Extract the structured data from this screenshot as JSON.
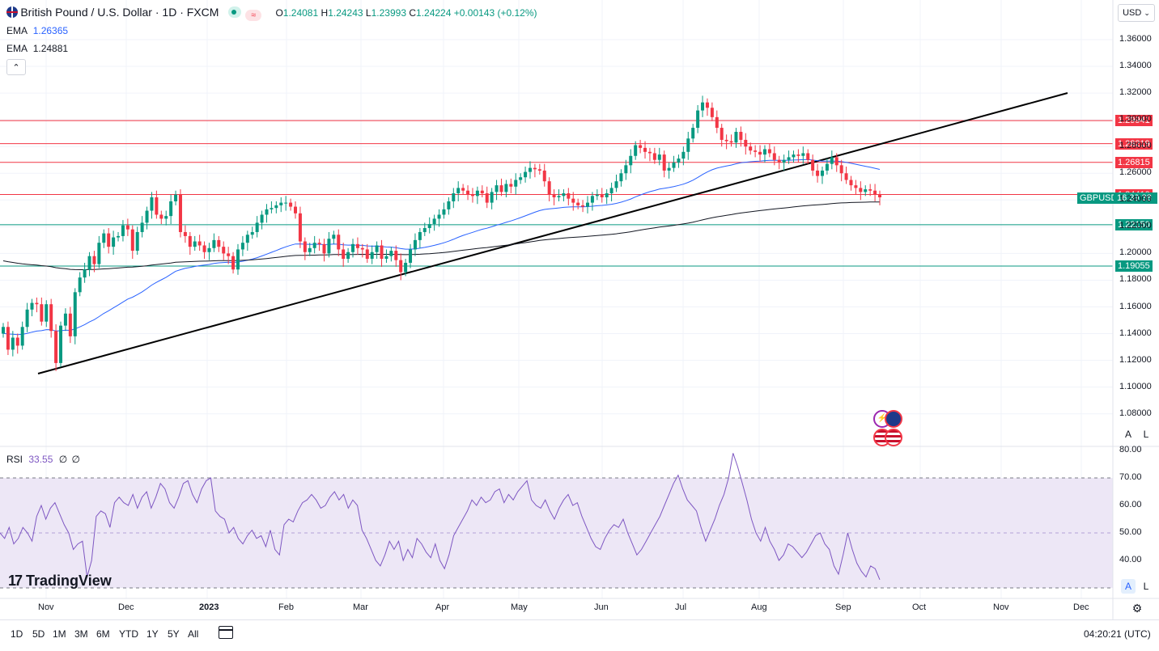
{
  "header": {
    "title": "British Pound / U.S. Dollar · 1D · FXCM",
    "open_label": "O",
    "open": "1.24081",
    "high_label": "H",
    "high": "1.24243",
    "low_label": "L",
    "low": "1.23993",
    "close_label": "C",
    "close": "1.24224",
    "change": "+0.00143 (+0.12%)",
    "currency": "USD",
    "currency_chevron": "⌄"
  },
  "indicators": {
    "ema1_label": "EMA",
    "ema1_value": "1.26365",
    "ema2_label": "EMA",
    "ema2_value": "1.24881",
    "collapse_icon": "⌃",
    "rsi_label": "RSI",
    "rsi_value": "33.55",
    "rsi_extra1": "∅",
    "rsi_extra2": "∅"
  },
  "brand": {
    "logo_text": "TradingView"
  },
  "levels": [
    {
      "value": "1.29941",
      "color": "#f23645"
    },
    {
      "value": "1.28219",
      "color": "#f23645"
    },
    {
      "value": "1.26815",
      "color": "#f23645"
    },
    {
      "value": "1.24410",
      "color": "#f23645"
    },
    {
      "value": "1.22150",
      "color": "#089981"
    },
    {
      "value": "1.19055",
      "color": "#089981"
    }
  ],
  "last_price": {
    "symbol": "GBPUSD",
    "countdown": "16:39:38",
    "value": "1.24224",
    "color": "#089981"
  },
  "axis_buttons": {
    "auto": "A",
    "log": "L",
    "auto2": "A",
    "log2": "L"
  },
  "footer": {
    "timeframes": [
      "1D",
      "5D",
      "1M",
      "3M",
      "6M",
      "YTD",
      "1Y",
      "5Y",
      "All"
    ],
    "clock": "04:20:21 (UTC)",
    "settings_icon": "⚙"
  },
  "colors": {
    "up": "#089981",
    "down": "#f23645",
    "ema_fast": "#2962ff",
    "ema_slow": "#131722",
    "rsi_line": "#7e57c2",
    "rsi_band": "#ede7f6",
    "trendline": "#000000"
  },
  "chart_data": [
    {
      "type": "candlestick",
      "title": "British Pound / U.S. Dollar · 1D · FXCM",
      "price_ticks": [
        "1.36000",
        "1.34000",
        "1.32000",
        "1.30000",
        "1.28000",
        "1.26000",
        "1.24000",
        "1.22000",
        "1.20000",
        "1.18000",
        "1.16000",
        "1.14000",
        "1.12000",
        "1.10000",
        "1.08000"
      ],
      "x_ticks": [
        "Nov",
        "Dec",
        "2023",
        "Feb",
        "Mar",
        "Apr",
        "May",
        "Jun",
        "Jul",
        "Aug",
        "Sep",
        "Oct",
        "Nov",
        "Dec"
      ],
      "ylim": [
        1.06,
        1.37
      ],
      "series": [
        {
          "name": "EMA",
          "values_label": "1.26365"
        },
        {
          "name": "EMA",
          "values_label": "1.24881"
        }
      ],
      "closes": [
        1.145,
        1.128,
        1.137,
        1.131,
        1.145,
        1.158,
        1.163,
        1.162,
        1.149,
        1.162,
        1.142,
        1.118,
        1.146,
        1.155,
        1.138,
        1.171,
        1.182,
        1.188,
        1.198,
        1.192,
        1.208,
        1.215,
        1.205,
        1.212,
        1.213,
        1.221,
        1.218,
        1.202,
        1.216,
        1.223,
        1.232,
        1.242,
        1.229,
        1.226,
        1.228,
        1.239,
        1.244,
        1.216,
        1.213,
        1.205,
        1.209,
        1.206,
        1.201,
        1.204,
        1.21,
        1.205,
        1.2,
        1.198,
        1.188,
        1.203,
        1.208,
        1.214,
        1.216,
        1.223,
        1.229,
        1.233,
        1.234,
        1.236,
        1.238,
        1.238,
        1.235,
        1.23,
        1.209,
        1.201,
        1.204,
        1.208,
        1.207,
        1.2,
        1.211,
        1.214,
        1.203,
        1.196,
        1.201,
        1.207,
        1.204,
        1.203,
        1.196,
        1.201,
        1.206,
        1.196,
        1.198,
        1.202,
        1.195,
        1.186,
        1.193,
        1.203,
        1.21,
        1.216,
        1.219,
        1.222,
        1.226,
        1.229,
        1.233,
        1.239,
        1.245,
        1.249,
        1.247,
        1.244,
        1.243,
        1.247,
        1.245,
        1.238,
        1.246,
        1.251,
        1.246,
        1.252,
        1.25,
        1.255,
        1.257,
        1.261,
        1.264,
        1.263,
        1.262,
        1.254,
        1.244,
        1.242,
        1.243,
        1.245,
        1.241,
        1.238,
        1.236,
        1.235,
        1.238,
        1.243,
        1.244,
        1.242,
        1.245,
        1.249,
        1.254,
        1.26,
        1.266,
        1.273,
        1.281,
        1.279,
        1.276,
        1.275,
        1.27,
        1.274,
        1.262,
        1.264,
        1.268,
        1.271,
        1.276,
        1.286,
        1.294,
        1.307,
        1.313,
        1.309,
        1.302,
        1.294,
        1.285,
        1.284,
        1.283,
        1.291,
        1.285,
        1.28,
        1.277,
        1.276,
        1.274,
        1.278,
        1.275,
        1.27,
        1.268,
        1.27,
        1.272,
        1.274,
        1.273,
        1.275,
        1.27,
        1.262,
        1.258,
        1.262,
        1.267,
        1.272,
        1.266,
        1.26,
        1.255,
        1.251,
        1.249,
        1.246,
        1.248,
        1.247,
        1.244,
        1.242
      ]
    },
    {
      "type": "line",
      "title": "RSI",
      "ylim": [
        30,
        80
      ],
      "ticks": [
        "80.00",
        "70.00",
        "60.00",
        "50.00",
        "40.00"
      ],
      "bands": [
        30,
        70
      ],
      "values": [
        50,
        48,
        52,
        46,
        48,
        52,
        50,
        47,
        56,
        60,
        55,
        59,
        61,
        57,
        53,
        50,
        44,
        46,
        47,
        34,
        40,
        56,
        58,
        57,
        52,
        61,
        63,
        61,
        60,
        64,
        59,
        63,
        65,
        59,
        63,
        68,
        66,
        61,
        59,
        63,
        68,
        69,
        64,
        61,
        66,
        69,
        70,
        58,
        56,
        55,
        50,
        52,
        48,
        46,
        49,
        51,
        48,
        49,
        45,
        51,
        44,
        42,
        53,
        55,
        54,
        58,
        61,
        62,
        64,
        62,
        59,
        60,
        63,
        65,
        62,
        64,
        59,
        62,
        60,
        51,
        48,
        44,
        40,
        38,
        42,
        47,
        44,
        47,
        40,
        44,
        41,
        48,
        46,
        43,
        41,
        46,
        40,
        37,
        42,
        49,
        52,
        55,
        58,
        62,
        60,
        63,
        61,
        62,
        65,
        66,
        61,
        64,
        62,
        65,
        67,
        69,
        62,
        60,
        59,
        62,
        58,
        55,
        59,
        62,
        64,
        60,
        61,
        56,
        52,
        48,
        45,
        44,
        48,
        51,
        53,
        52,
        55,
        50,
        46,
        42,
        44,
        47,
        50,
        53,
        56,
        60,
        64,
        68,
        71,
        66,
        62,
        60,
        58,
        52,
        47,
        51,
        55,
        60,
        64,
        70,
        79,
        74,
        68,
        62,
        55,
        50,
        47,
        52,
        47,
        44,
        40,
        42,
        46,
        45,
        43,
        41,
        43,
        46,
        49,
        50,
        46,
        44,
        38,
        35,
        42,
        50,
        44,
        39,
        36,
        34,
        38,
        37,
        33
      ]
    }
  ]
}
